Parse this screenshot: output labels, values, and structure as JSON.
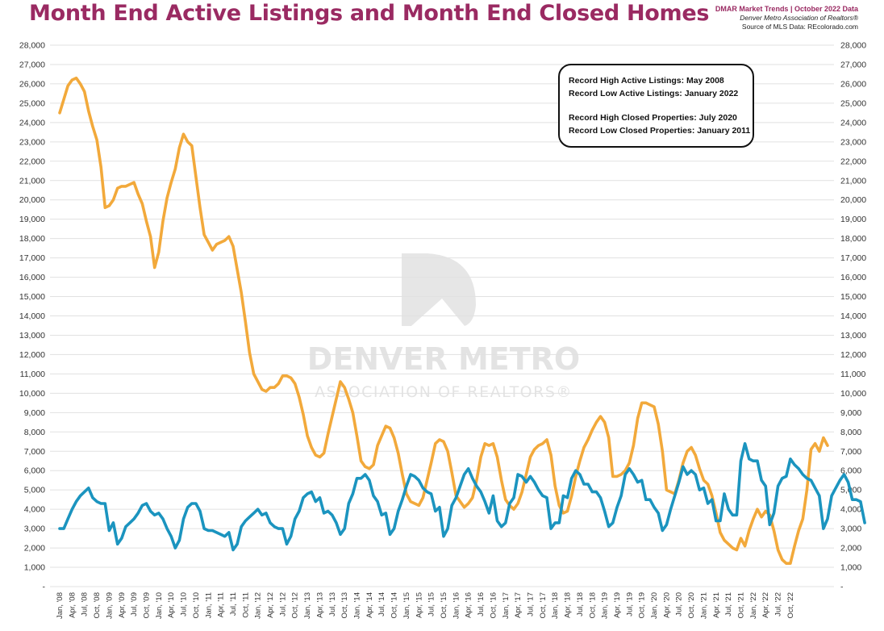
{
  "header": {
    "title": "Month End Active Listings and Month End Closed Homes",
    "source_line1": "DMAR Market Trends | October 2022 Data",
    "source_line2": "Denver Metro Association of Realtors®",
    "source_line3": "Source of MLS Data: REcolorado.com"
  },
  "notes": {
    "line1": "Record High Active Listings: May 2008",
    "line2": "Record Low Active Listings: January 2022",
    "line3": "Record High Closed Properties: July 2020",
    "line4": "Record Low Closed Properties: January 2011"
  },
  "watermark": {
    "line1": "DENVER METRO",
    "line2": "ASSOCIATION OF REALTORS®"
  },
  "colors": {
    "active": "#f2a93b",
    "closed": "#1b94bf",
    "title": "#9a2a62",
    "grid": "#e1e1e1"
  },
  "chart_data": {
    "type": "line",
    "title": "Month End Active Listings and Month End Closed Homes",
    "ylim": [
      0,
      28000
    ],
    "y_ticks": [
      "-",
      "1,000",
      "2,000",
      "3,000",
      "4,000",
      "5,000",
      "6,000",
      "7,000",
      "8,000",
      "9,000",
      "10,000",
      "11,000",
      "12,000",
      "13,000",
      "14,000",
      "15,000",
      "16,000",
      "17,000",
      "18,000",
      "19,000",
      "20,000",
      "21,000",
      "22,000",
      "23,000",
      "24,000",
      "25,000",
      "26,000",
      "27,000",
      "28,000"
    ],
    "grid": true,
    "x_start": "Jan, '08",
    "x_end": "Oct, '22",
    "x_tick_labels": [
      "Jan, '08",
      "Apr, '08",
      "Jul, '08",
      "Oct, '08",
      "Jan, '09",
      "Apr, '09",
      "Jul, '09",
      "Oct, '09",
      "Jan, '10",
      "Apr, '10",
      "Jul, '10",
      "Oct, '10",
      "Jan, '11",
      "Apr, '11",
      "Jul, '11",
      "Oct, '11",
      "Jan, '12",
      "Apr, '12",
      "Jul, '12",
      "Oct, '12",
      "Jan, '13",
      "Apr, '13",
      "Jul, '13",
      "Oct, '13",
      "Jan, '14",
      "Apr, '14",
      "Jul, '14",
      "Oct, '14",
      "Jan, '15",
      "Apr, '15",
      "Jul, '15",
      "Oct, '15",
      "Jan, '16",
      "Apr, '16",
      "Jul, '16",
      "Oct, '16",
      "Jan, '17",
      "Apr, '17",
      "Jul, '17",
      "Oct, '17",
      "Jan, '18",
      "Apr, '18",
      "Jul, '18",
      "Oct, '18",
      "Jan, '19",
      "Apr, '19",
      "Jul, '19",
      "Oct, '19",
      "Jan, '20",
      "Apr, '20",
      "Jul, '20",
      "Oct, '20",
      "Jan, '21",
      "Apr, '21",
      "Jul, '21",
      "Oct, '21",
      "Jan, '22",
      "Apr, '22",
      "Jul, '22",
      "Oct, '22"
    ],
    "series": [
      {
        "key": "active",
        "values": [
          24500,
          25200,
          25900,
          26200,
          26300,
          26000,
          25600,
          24600,
          23800,
          23100,
          21700,
          19600,
          19700,
          20000,
          20600,
          20700,
          20700,
          20800,
          20900,
          20300,
          19800,
          18900,
          18100,
          16500,
          17300,
          18900,
          20100,
          20900,
          21600,
          22700,
          23400,
          23000,
          22800,
          21200,
          19600,
          18200,
          17800,
          17400,
          17700,
          17800,
          17900,
          18100,
          17600,
          16400,
          15200,
          13700,
          12100,
          11000,
          10600,
          10200,
          10100,
          10300,
          10300,
          10500,
          10900,
          10900,
          10800,
          10500,
          9800,
          8900,
          7800,
          7200,
          6800,
          6700,
          6900,
          7900,
          8800,
          9700,
          10600,
          10300,
          9700,
          9000,
          7800,
          6500,
          6200,
          6100,
          6300,
          7300,
          7800,
          8300,
          8200,
          7700,
          6900,
          5800,
          4800,
          4400,
          4300,
          4200,
          4600,
          5500,
          6400,
          7400,
          7600,
          7500,
          7000,
          5900,
          4700,
          4400,
          4100,
          4300,
          4600,
          5500,
          6700,
          7400,
          7300,
          7400,
          6700,
          5500,
          4500,
          4200,
          4000,
          4300,
          4900,
          5800,
          6700,
          7100,
          7300,
          7400,
          7600,
          6800,
          5200,
          4200,
          3800,
          3900,
          4700,
          5700,
          6500,
          7200,
          7600,
          8100,
          8500,
          8800,
          8500,
          7700,
          5700,
          5700,
          5800,
          6000,
          6400,
          7300,
          8700,
          9500,
          9500,
          9400,
          9300,
          8400,
          7000,
          5000,
          4900,
          4800,
          5500,
          6400,
          7000,
          7200,
          6800,
          6100,
          5500,
          5300,
          4700,
          3800,
          2800,
          2400,
          2200,
          2000,
          1900,
          2500,
          2100,
          2900,
          3500,
          4000,
          3600,
          3900,
          3700,
          2900,
          1900,
          1400,
          1200,
          1200,
          2100,
          2900,
          3500,
          5000,
          7100,
          7400,
          7000,
          7700,
          7300
        ]
      },
      {
        "key": "closed",
        "values": [
          3000,
          3000,
          3500,
          4000,
          4400,
          4700,
          4900,
          5100,
          4600,
          4400,
          4300,
          4300,
          2900,
          3300,
          2200,
          2500,
          3100,
          3300,
          3500,
          3800,
          4200,
          4300,
          3900,
          3700,
          3800,
          3500,
          3000,
          2600,
          2000,
          2400,
          3500,
          4100,
          4300,
          4300,
          3900,
          3000,
          2900,
          2900,
          2800,
          2700,
          2600,
          2800,
          1900,
          2200,
          3100,
          3400,
          3600,
          3800,
          4000,
          3700,
          3800,
          3300,
          3100,
          3000,
          3000,
          2200,
          2600,
          3500,
          3900,
          4600,
          4800,
          4900,
          4400,
          4600,
          3800,
          3900,
          3700,
          3300,
          2700,
          3000,
          4300,
          4800,
          5600,
          5600,
          5800,
          5500,
          4700,
          4400,
          3700,
          3800,
          2700,
          3000,
          3900,
          4500,
          5200,
          5800,
          5700,
          5500,
          5100,
          4900,
          4800,
          3900,
          4100,
          2600,
          3000,
          4200,
          4600,
          5200,
          5800,
          6100,
          5600,
          5200,
          4900,
          4400,
          3800,
          4700,
          3400,
          3100,
          3300,
          4300,
          4600,
          5800,
          5700,
          5400,
          5700,
          5400,
          5000,
          4700,
          4600,
          3000,
          3300,
          3300,
          4700,
          4600,
          5600,
          6000,
          5800,
          5300,
          5300,
          4900,
          4900,
          4600,
          3900,
          3100,
          3300,
          4100,
          4700,
          5800,
          6100,
          5800,
          5400,
          5500,
          4500,
          4500,
          4100,
          3800,
          2900,
          3200,
          4000,
          4700,
          5400,
          6200,
          5800,
          6000,
          5800,
          5000,
          5100,
          4300,
          4500,
          3400,
          3400,
          4800,
          4000,
          3700,
          3700,
          6500,
          7400,
          6600,
          6500,
          6500,
          5500,
          5200,
          3200,
          3800,
          5200,
          5600,
          5700,
          6600,
          6300,
          6100,
          5800,
          5600,
          5500,
          5100,
          4700,
          3000,
          3500,
          4700,
          5100,
          5500,
          5800,
          5400,
          4500,
          4500,
          4400,
          3300
        ]
      }
    ]
  }
}
